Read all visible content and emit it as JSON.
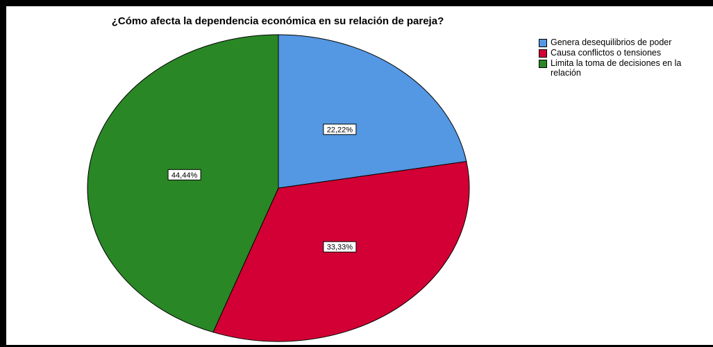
{
  "chart_data": {
    "type": "pie",
    "title": "¿Cómo afecta la dependencia económica en su relación de pareja?",
    "categories": [
      "Genera desequilibrios de poder",
      "Causa conflictos o tensiones",
      "Limita la toma de decisiones en la relación"
    ],
    "values": [
      22.22,
      33.33,
      44.44
    ],
    "value_labels": [
      "22,22%",
      "33,33%",
      "44,44%"
    ],
    "colors": [
      "#5497e2",
      "#d20034",
      "#2a8726"
    ],
    "legend_position": "top-right",
    "start_angle": "12 o'clock",
    "direction": "clockwise"
  }
}
